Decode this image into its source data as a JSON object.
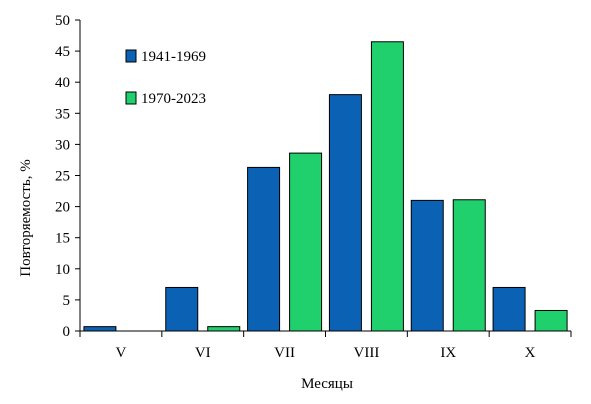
{
  "chart_data": {
    "type": "bar",
    "title": "",
    "xlabel": "Месяцы",
    "ylabel": "Повторяемость, %",
    "ylim": [
      0,
      50
    ],
    "yticks": [
      0,
      5,
      10,
      15,
      20,
      25,
      30,
      35,
      40,
      45,
      50
    ],
    "categories": [
      "V",
      "VI",
      "VII",
      "VIII",
      "IX",
      "X"
    ],
    "grid": false,
    "legend_position": "top-left",
    "series": [
      {
        "name": "1941-1969",
        "color": "#0b62b5",
        "values": [
          0.7,
          7.0,
          26.3,
          38.0,
          21.0,
          7.0
        ]
      },
      {
        "name": "1970-2023",
        "color": "#1fd06c",
        "values": [
          0,
          0.7,
          28.6,
          46.5,
          21.1,
          3.3
        ]
      }
    ]
  }
}
